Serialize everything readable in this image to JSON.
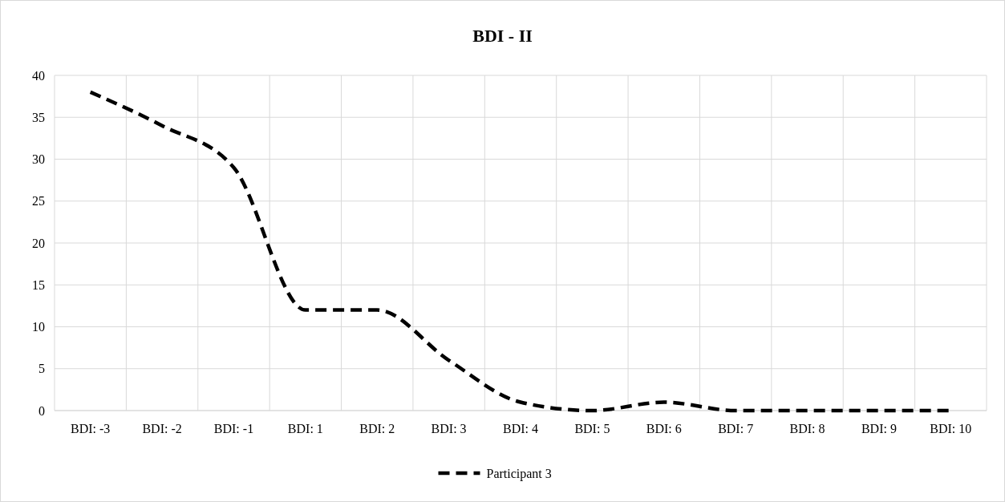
{
  "chart_data": {
    "type": "line",
    "title": "BDI - II",
    "categories": [
      "BDI: -3",
      "BDI: -2",
      "BDI: -1",
      "BDI: 1",
      "BDI: 2",
      "BDI: 3",
      "BDI: 4",
      "BDI: 5",
      "BDI: 6",
      "BDI: 7",
      "BDI: 8",
      "BDI: 9",
      "BDI: 10"
    ],
    "series": [
      {
        "name": "Participant 3",
        "color": "#000000",
        "values": [
          38,
          34,
          29,
          12,
          12,
          6,
          1,
          0,
          1,
          0,
          0,
          0,
          0
        ]
      }
    ],
    "ylim": [
      0,
      40
    ],
    "yticks": [
      0,
      5,
      10,
      15,
      20,
      25,
      30,
      35,
      40
    ],
    "grid": true,
    "legend": "bottom",
    "line_style": "dashed",
    "marker": "none"
  }
}
